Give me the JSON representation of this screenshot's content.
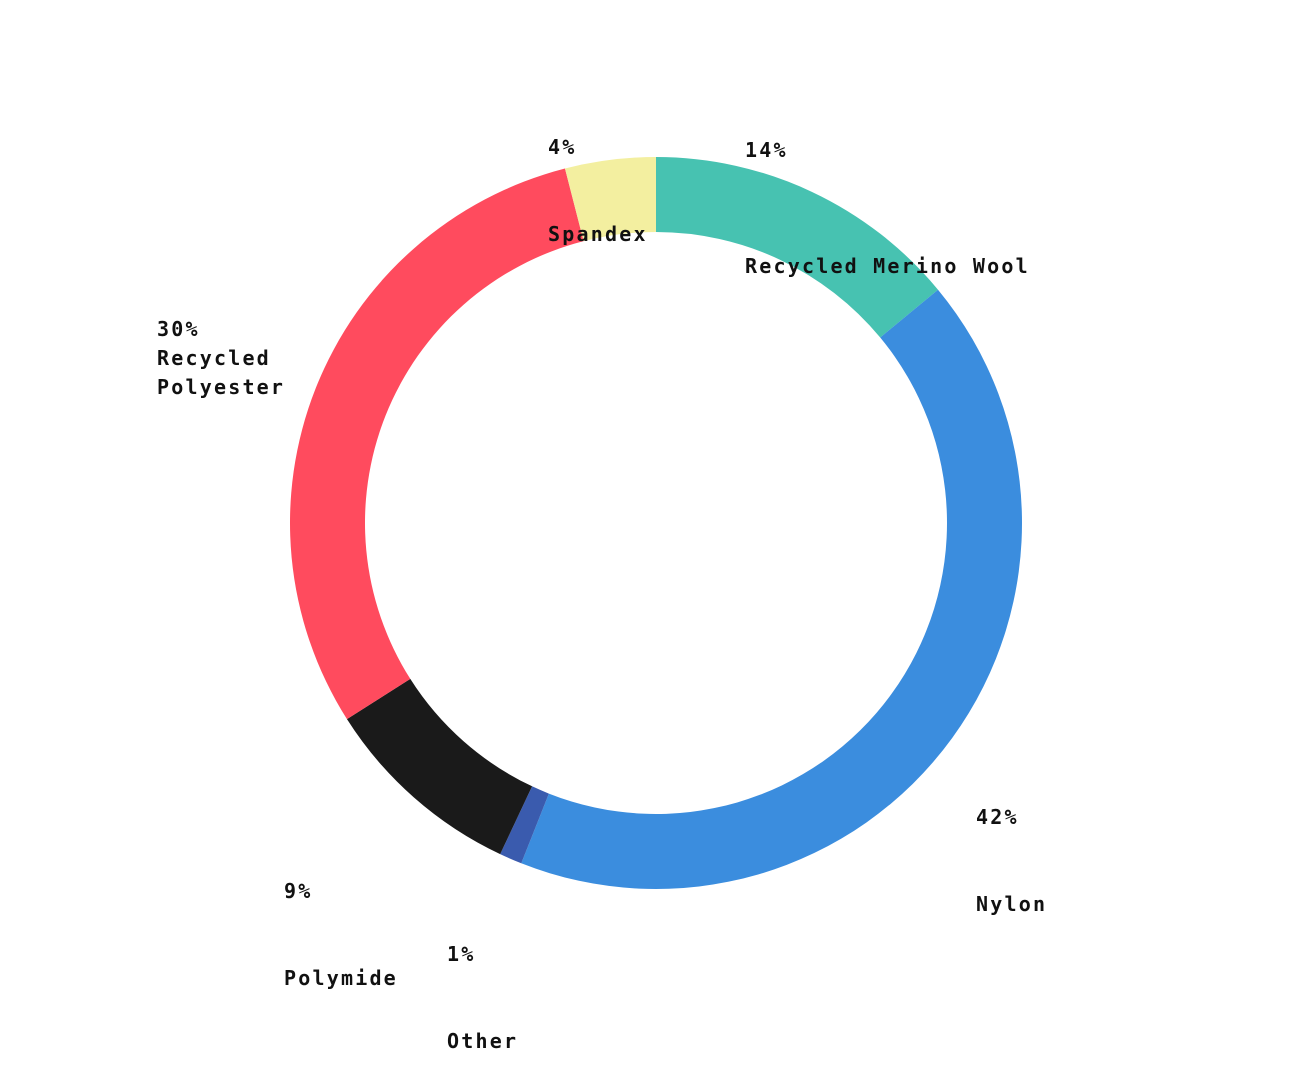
{
  "chart_data": {
    "type": "pie",
    "donut": true,
    "start": "top",
    "direction": "clockwise",
    "slices": [
      {
        "label": "Recycled Merino Wool",
        "value": 14,
        "value_label": "14%",
        "color": "#47C2B1"
      },
      {
        "label": "Nylon",
        "value": 42,
        "value_label": "42%",
        "color": "#3B8DDE"
      },
      {
        "label": "Other",
        "value": 1,
        "value_label": "1%",
        "color": "#3A5BAE"
      },
      {
        "label": "Polymide",
        "value": 9,
        "value_label": "9%",
        "color": "#1A1A1A"
      },
      {
        "label": "Recycled Polyester",
        "value": 30,
        "value_label": "30%",
        "color": "#FF4B5E"
      },
      {
        "label": "Spandex",
        "value": 4,
        "value_label": "4%",
        "color": "#F3EFA0"
      }
    ]
  }
}
